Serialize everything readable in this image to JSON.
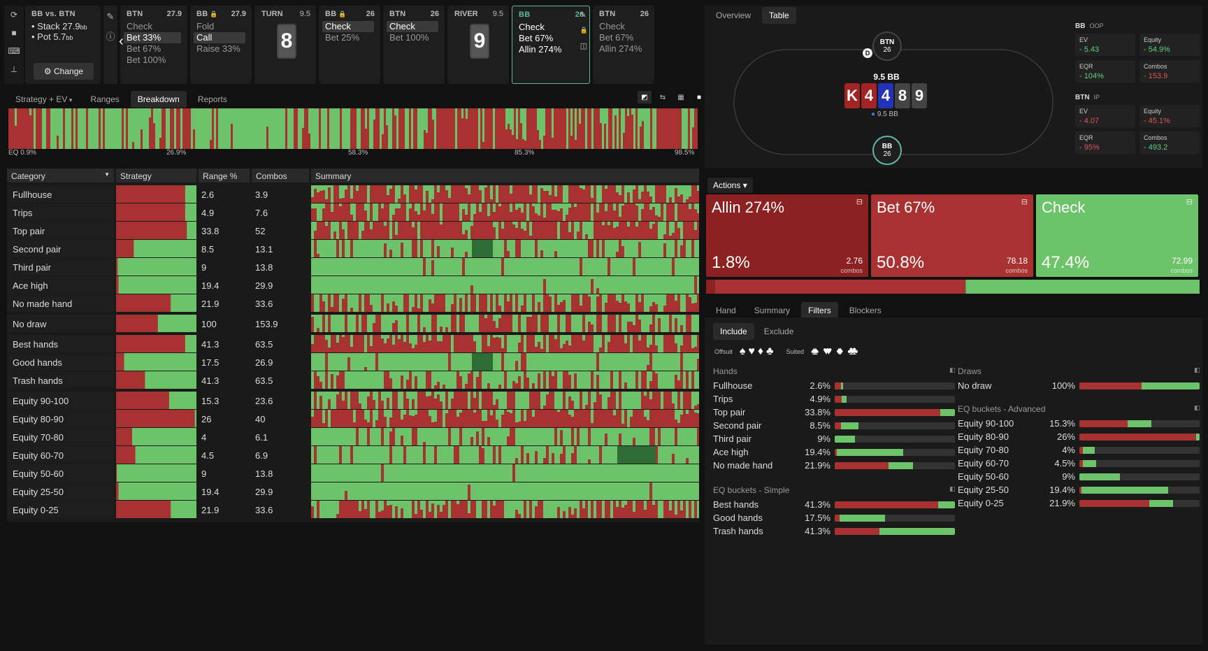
{
  "colors": {
    "red": "#a83232",
    "green": "#6cc36a",
    "dkgreen": "#2e6d35",
    "teal": "#5db8a6",
    "bg": "#111111"
  },
  "toolbar": {
    "icons": [
      "refresh-icon",
      "save-icon",
      "gamepad-icon",
      "align-icon"
    ]
  },
  "header": {
    "info": {
      "title": "BB vs. BTN",
      "stack": "Stack 27.9",
      "stack_unit": "bb",
      "pot": "Pot 5.7",
      "pot_unit": "bb",
      "change": "Change"
    },
    "nodes": [
      {
        "pos": "BTN",
        "stack": "27.9",
        "actions": [
          "Check",
          "Bet 33%",
          "Bet 67%",
          "Bet 100%"
        ],
        "sel": 1,
        "locked": false
      },
      {
        "pos": "BB",
        "stack": "27.9",
        "actions": [
          "Fold",
          "Call",
          "Raise 33%"
        ],
        "sel": 1,
        "locked": true
      },
      {
        "pos": "TURN",
        "stack": "9.5",
        "card": "8",
        "street": true
      },
      {
        "pos": "BB",
        "stack": "26",
        "actions": [
          "Check",
          "Bet 25%"
        ],
        "sel": 0,
        "locked": true
      },
      {
        "pos": "BTN",
        "stack": "26",
        "actions": [
          "Check",
          "Bet 100%"
        ],
        "sel": 0,
        "locked": false
      },
      {
        "pos": "RIVER",
        "stack": "9.5",
        "card": "9",
        "street": true
      },
      {
        "pos": "BB",
        "stack": "26",
        "actions": [
          "Check",
          "Bet 67%",
          "Allin 274%"
        ],
        "active": true
      },
      {
        "pos": "BTN",
        "stack": "26",
        "actions": [
          "Check",
          "Bet 67%",
          "Allin 274%"
        ]
      }
    ]
  },
  "tabs": [
    "Strategy + EV",
    "Ranges",
    "Breakdown",
    "Reports"
  ],
  "active_tab": "Breakdown",
  "eq_ticks": [
    "EQ 0.9%",
    "26.9%",
    "58.3%",
    "85.3%",
    "98.5%"
  ],
  "table": {
    "headers": [
      "Category",
      "Strategy",
      "Range %",
      "Combos",
      "Summary"
    ],
    "groups": [
      [
        {
          "cat": "Fullhouse",
          "range": "2.6",
          "combos": "3.9",
          "red": 0.86
        },
        {
          "cat": "Trips",
          "range": "4.9",
          "combos": "7.6",
          "red": 0.86
        },
        {
          "cat": "Top pair",
          "range": "33.8",
          "combos": "52",
          "red": 0.88
        },
        {
          "cat": "Second pair",
          "range": "8.5",
          "combos": "13.1",
          "red": 0.22
        },
        {
          "cat": "Third pair",
          "range": "9",
          "combos": "13.8",
          "red": 0.02
        },
        {
          "cat": "Ace high",
          "range": "19.4",
          "combos": "29.9",
          "red": 0.03
        },
        {
          "cat": "No made hand",
          "range": "21.9",
          "combos": "33.6",
          "red": 0.68
        }
      ],
      [
        {
          "cat": "No draw",
          "range": "100",
          "combos": "153.9",
          "red": 0.52
        }
      ],
      [
        {
          "cat": "Best hands",
          "range": "41.3",
          "combos": "63.5",
          "red": 0.86
        },
        {
          "cat": "Good hands",
          "range": "17.5",
          "combos": "26.9",
          "red": 0.1
        },
        {
          "cat": "Trash hands",
          "range": "41.3",
          "combos": "63.5",
          "red": 0.36
        }
      ],
      [
        {
          "cat": "Equity 90-100",
          "range": "15.3",
          "combos": "23.6",
          "red": 0.66
        },
        {
          "cat": "Equity 80-90",
          "range": "26",
          "combos": "40",
          "red": 0.98
        },
        {
          "cat": "Equity 70-80",
          "range": "4",
          "combos": "6.1",
          "red": 0.2
        },
        {
          "cat": "Equity 60-70",
          "range": "4.5",
          "combos": "6.9",
          "red": 0.24
        },
        {
          "cat": "Equity 50-60",
          "range": "9",
          "combos": "13.8",
          "red": 0.01
        },
        {
          "cat": "Equity 25-50",
          "range": "19.4",
          "combos": "29.9",
          "red": 0.03
        },
        {
          "cat": "Equity 0-25",
          "range": "21.9",
          "combos": "33.6",
          "red": 0.68
        }
      ]
    ]
  },
  "right_tabs": [
    "Overview",
    "Table"
  ],
  "right_active": "Table",
  "table_view": {
    "top_seat": {
      "pos": "BTN",
      "stack": "26"
    },
    "bottom_seat": {
      "pos": "BB",
      "stack": "26"
    },
    "dealer": "D",
    "pot": "9.5 BB",
    "board": [
      "K",
      "4",
      "4",
      "8",
      "9"
    ],
    "board_colors": [
      "#a32424",
      "#a32424",
      "#2233b8",
      "#444444",
      "#444444"
    ],
    "chips": "9.5 BB"
  },
  "stats": [
    {
      "title": "BB",
      "tag": "OOP",
      "items": [
        {
          "l": "EV",
          "v": "5.43",
          "c": "green"
        },
        {
          "l": "Equity",
          "v": "54.9%",
          "c": "green"
        },
        {
          "l": "EQR",
          "v": "104%",
          "c": "green"
        },
        {
          "l": "Combos",
          "v": "153.9",
          "c": "red"
        }
      ]
    },
    {
      "title": "BTN",
      "tag": "IP",
      "items": [
        {
          "l": "EV",
          "v": "4.07",
          "c": "red"
        },
        {
          "l": "Equity",
          "v": "45.1%",
          "c": "red"
        },
        {
          "l": "EQR",
          "v": "95%",
          "c": "red"
        },
        {
          "l": "Combos",
          "v": "493.2",
          "c": "green"
        }
      ]
    }
  ],
  "actions_label": "Actions",
  "action_boxes": [
    {
      "name": "Allin 274%",
      "pct": "1.8%",
      "combos": "2.76",
      "combos_label": "combos",
      "color": "#8b2121",
      "frac": 0.018
    },
    {
      "name": "Bet 67%",
      "pct": "50.8%",
      "combos": "78.18",
      "combos_label": "combos",
      "color": "#a83232",
      "frac": 0.508
    },
    {
      "name": "Check",
      "pct": "47.4%",
      "combos": "72.99",
      "combos_label": "combos",
      "color": "#6cc36a",
      "frac": 0.474
    }
  ],
  "filter_tabs": [
    "Hand",
    "Summary",
    "Filters",
    "Blockers"
  ],
  "filter_active": "Filters",
  "include": "Include",
  "exclude": "Exclude",
  "offsuit": "Offsuit",
  "suited": "Suited",
  "hands_title": "Hands",
  "hands": [
    {
      "l": "Fullhouse",
      "p": "2.6%",
      "r": 0.05,
      "g": 0.02
    },
    {
      "l": "Trips",
      "p": "4.9%",
      "r": 0.06,
      "g": 0.04
    },
    {
      "l": "Top pair",
      "p": "33.8%",
      "r": 0.88,
      "g": 0.12
    },
    {
      "l": "Second pair",
      "p": "8.5%",
      "r": 0.05,
      "g": 0.15
    },
    {
      "l": "Third pair",
      "p": "9%",
      "r": 0.0,
      "g": 0.17
    },
    {
      "l": "Ace high",
      "p": "19.4%",
      "r": 0.02,
      "g": 0.55
    },
    {
      "l": "No made hand",
      "p": "21.9%",
      "r": 0.45,
      "g": 0.2
    }
  ],
  "simple_title": "EQ buckets - Simple",
  "simple": [
    {
      "l": "Best hands",
      "p": "41.3%",
      "r": 0.86,
      "g": 0.14
    },
    {
      "l": "Good hands",
      "p": "17.5%",
      "r": 0.04,
      "g": 0.38
    },
    {
      "l": "Trash hands",
      "p": "41.3%",
      "r": 0.37,
      "g": 0.63
    }
  ],
  "draws_title": "Draws",
  "draws": [
    {
      "l": "No draw",
      "p": "100%",
      "r": 0.52,
      "g": 0.48
    }
  ],
  "adv_title": "EQ buckets - Advanced",
  "adv": [
    {
      "l": "Equity 90-100",
      "p": "15.3%",
      "r": 0.4,
      "g": 0.2
    },
    {
      "l": "Equity 80-90",
      "p": "26%",
      "r": 0.97,
      "g": 0.03
    },
    {
      "l": "Equity 70-80",
      "p": "4%",
      "r": 0.03,
      "g": 0.1
    },
    {
      "l": "Equity 60-70",
      "p": "4.5%",
      "r": 0.03,
      "g": 0.11
    },
    {
      "l": "Equity 50-60",
      "p": "9%",
      "r": 0.0,
      "g": 0.34
    },
    {
      "l": "Equity 25-50",
      "p": "19.4%",
      "r": 0.02,
      "g": 0.72
    },
    {
      "l": "Equity 0-25",
      "p": "21.9%",
      "r": 0.58,
      "g": 0.2
    }
  ]
}
